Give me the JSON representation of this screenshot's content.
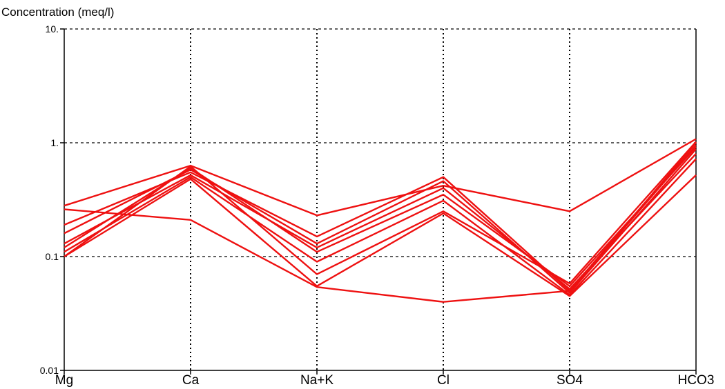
{
  "chart_data": {
    "type": "line",
    "title": "",
    "ylabel": "Concentration (meq/l)",
    "xlabel": "",
    "y_scale": "log",
    "ylim": [
      0.01,
      10
    ],
    "y_ticks": [
      "0.01",
      "0.1",
      "1.",
      "10."
    ],
    "y_tick_values": [
      0.01,
      0.1,
      1,
      10
    ],
    "grid_y_values": [
      0.1,
      1
    ],
    "grid_style": "dotted",
    "categories": [
      "Mg",
      "Ca",
      "Na+K",
      "Cl",
      "SO4",
      "HCO3"
    ],
    "line_color": "#ee1111",
    "series": [
      {
        "values": [
          0.28,
          0.63,
          0.23,
          0.42,
          0.25,
          1.08
        ]
      },
      {
        "values": [
          0.26,
          0.21,
          0.054,
          0.04,
          0.05,
          1.0
        ]
      },
      {
        "values": [
          0.19,
          0.55,
          0.15,
          0.5,
          0.05,
          0.95
        ]
      },
      {
        "values": [
          0.16,
          0.58,
          0.13,
          0.46,
          0.048,
          0.88
        ]
      },
      {
        "values": [
          0.13,
          0.52,
          0.12,
          0.4,
          0.052,
          0.8
        ]
      },
      {
        "values": [
          0.12,
          0.6,
          0.11,
          0.35,
          0.055,
          0.92
        ]
      },
      {
        "values": [
          0.11,
          0.5,
          0.09,
          0.31,
          0.046,
          0.72
        ]
      },
      {
        "values": [
          0.1,
          0.62,
          0.07,
          0.25,
          0.058,
          1.02
        ]
      },
      {
        "values": [
          0.1,
          0.48,
          0.055,
          0.24,
          0.045,
          0.52
        ]
      }
    ]
  }
}
